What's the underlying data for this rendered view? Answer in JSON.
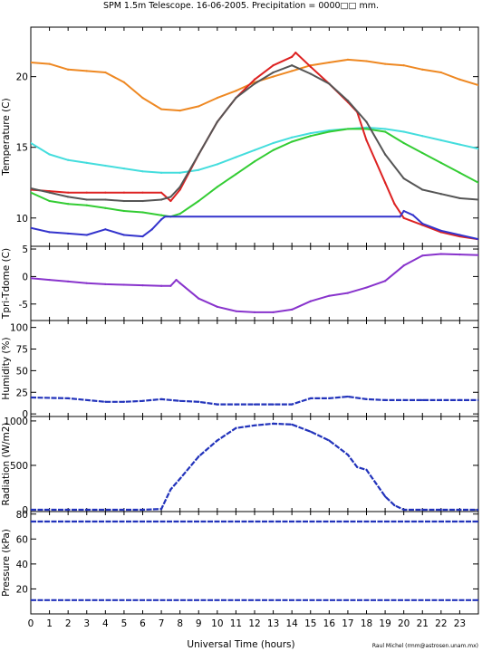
{
  "title": "SPM 1.5m Telescope. 16-06-2005. Precipitation = 0000□□ mm.",
  "credit": "Raul Michel (rmm@astrosen.unam.mx)",
  "chart_data": [
    {
      "type": "line",
      "panel": "temperature",
      "ylabel": "Temperature (C)",
      "xlim": [
        0,
        24
      ],
      "ylim": [
        8,
        23.5
      ],
      "yticks": [
        "10",
        "15",
        "20"
      ],
      "grid": false,
      "series": [
        {
          "color": "#ee8822",
          "x": [
            0,
            1,
            2,
            3,
            4,
            5,
            6,
            7,
            8,
            9,
            10,
            11,
            12,
            13,
            14,
            15,
            16,
            17,
            18,
            19,
            20,
            21,
            22,
            23,
            24
          ],
          "y": [
            21,
            20.9,
            20.5,
            20.4,
            20.3,
            19.6,
            18.5,
            17.7,
            17.6,
            17.9,
            18.5,
            19,
            19.6,
            20,
            20.4,
            20.8,
            21,
            21.2,
            21.1,
            20.9,
            20.8,
            20.5,
            20.3,
            19.8,
            19.4
          ]
        },
        {
          "color": "#44dddd",
          "x": [
            0,
            1,
            2,
            3,
            4,
            5,
            6,
            7,
            8,
            9,
            10,
            11,
            12,
            13,
            14,
            15,
            16,
            17,
            18,
            19,
            20,
            21,
            22,
            23,
            24
          ],
          "y": [
            15.3,
            14.5,
            14.1,
            13.9,
            13.7,
            13.5,
            13.3,
            13.2,
            13.2,
            13.4,
            13.8,
            14.3,
            14.8,
            15.3,
            15.7,
            16,
            16.2,
            16.3,
            16.4,
            16.3,
            16.1,
            15.8,
            15.5,
            15.2,
            14.9
          ]
        },
        {
          "color": "#33cc33",
          "x": [
            0,
            1,
            2,
            3,
            4,
            5,
            6,
            7,
            7.5,
            8,
            9,
            10,
            11,
            12,
            13,
            14,
            15,
            16,
            17,
            18,
            19,
            20,
            21,
            22,
            23,
            24
          ],
          "y": [
            11.8,
            11.2,
            11,
            10.9,
            10.7,
            10.5,
            10.4,
            10.2,
            10.1,
            10.3,
            11.2,
            12.2,
            13.1,
            14,
            14.8,
            15.4,
            15.8,
            16.1,
            16.3,
            16.3,
            16.1,
            15.3,
            14.6,
            13.9,
            13.2,
            12.5
          ]
        },
        {
          "color": "#dd2222",
          "x": [
            0,
            1,
            2,
            3,
            4,
            5,
            6,
            7,
            7.5,
            8,
            9,
            10,
            11,
            12,
            13,
            14,
            14.2,
            15,
            16,
            17,
            17.5,
            18,
            19,
            19.5,
            20,
            21,
            22,
            23,
            24
          ],
          "y": [
            12,
            11.9,
            11.8,
            11.8,
            11.8,
            11.8,
            11.8,
            11.8,
            11.2,
            12,
            14.5,
            16.8,
            18.5,
            19.8,
            20.8,
            21.4,
            21.7,
            20.7,
            19.5,
            18.2,
            17.5,
            15.5,
            12.5,
            11,
            10,
            9.5,
            9,
            8.7,
            8.5
          ]
        },
        {
          "color": "#555555",
          "x": [
            0,
            1,
            2,
            3,
            4,
            5,
            6,
            7,
            7.5,
            8,
            9,
            10,
            11,
            12,
            13,
            14,
            15,
            16,
            17,
            18,
            19,
            20,
            21,
            22,
            23,
            24
          ],
          "y": [
            12.1,
            11.8,
            11.5,
            11.3,
            11.3,
            11.2,
            11.2,
            11.3,
            11.5,
            12.2,
            14.5,
            16.8,
            18.5,
            19.5,
            20.3,
            20.8,
            20.2,
            19.5,
            18.3,
            16.8,
            14.5,
            12.8,
            12,
            11.7,
            11.4,
            11.3
          ]
        },
        {
          "color": "#3333cc",
          "x": [
            0,
            1,
            2,
            3,
            4,
            5,
            6,
            6.5,
            7,
            7.2,
            19.8,
            20,
            20.5,
            21,
            22,
            23,
            24
          ],
          "y": [
            9.3,
            9,
            8.9,
            8.8,
            9.2,
            8.8,
            8.7,
            9.2,
            9.9,
            10.1,
            10.1,
            10.5,
            10.2,
            9.6,
            9.1,
            8.8,
            8.5
          ]
        }
      ]
    },
    {
      "type": "line",
      "panel": "temperature-difference",
      "ylabel": "Tpri-Tdome (C)",
      "xlim": [
        0,
        24
      ],
      "ylim": [
        -8,
        5.5
      ],
      "yticks": [
        "-5",
        "0",
        "5"
      ],
      "series": [
        {
          "color": "#8833cc",
          "x": [
            0,
            1,
            2,
            3,
            4,
            5,
            6,
            7,
            7.5,
            7.8,
            8,
            9,
            10,
            11,
            12,
            13,
            14,
            15,
            16,
            17,
            18,
            19,
            20,
            21,
            22,
            23,
            24
          ],
          "y": [
            -0.3,
            -0.6,
            -0.9,
            -1.2,
            -1.4,
            -1.5,
            -1.6,
            -1.7,
            -1.7,
            -0.6,
            -1.2,
            -4,
            -5.5,
            -6.3,
            -6.5,
            -6.5,
            -6,
            -4.5,
            -3.5,
            -3,
            -2,
            -0.8,
            2,
            3.8,
            4.1,
            4,
            3.9
          ]
        }
      ]
    },
    {
      "type": "scatter",
      "panel": "humidity",
      "ylabel": "Humidity (%)",
      "xlim": [
        0,
        24
      ],
      "ylim": [
        -3,
        108
      ],
      "yticks": [
        "0",
        "25",
        "50",
        "75",
        "100"
      ],
      "series": [
        {
          "color": "#2233bb",
          "x": [
            0,
            2,
            4,
            5,
            6,
            7,
            8,
            9,
            10,
            11,
            12,
            13,
            14,
            15,
            16,
            17,
            18,
            19,
            20,
            21,
            22,
            23,
            24
          ],
          "y": [
            19,
            18,
            14,
            14,
            15,
            17,
            15,
            14,
            11,
            11,
            11,
            11,
            11,
            18,
            18,
            20,
            17,
            16,
            16,
            16,
            16,
            16,
            16
          ]
        }
      ]
    },
    {
      "type": "scatter",
      "panel": "radiation",
      "ylabel": "Radiation (W/m2)",
      "xlim": [
        0,
        24
      ],
      "ylim": [
        -20,
        1050
      ],
      "yticks": [
        "0",
        "500",
        "1000"
      ],
      "series": [
        {
          "color": "#2233bb",
          "x": [
            0,
            6,
            7,
            7.5,
            8,
            9,
            10,
            11,
            12,
            13,
            14,
            15,
            16,
            17,
            17.5,
            18,
            18.5,
            19,
            19.5,
            20,
            21,
            22,
            23,
            24
          ],
          "y": [
            0,
            0,
            10,
            230,
            350,
            600,
            780,
            920,
            950,
            970,
            960,
            880,
            780,
            620,
            480,
            450,
            300,
            150,
            50,
            0,
            0,
            0,
            0,
            0
          ]
        }
      ]
    },
    {
      "type": "scatter",
      "panel": "pressure",
      "ylabel": "Pressure (kPa)",
      "xlim": [
        0,
        24
      ],
      "ylim": [
        0,
        82
      ],
      "yticks": [
        "20",
        "40",
        "60",
        "80"
      ],
      "series": [
        {
          "color": "#2233bb",
          "x": [
            0,
            24
          ],
          "y": [
            74,
            74
          ]
        },
        {
          "color": "#2233bb",
          "x": [
            0,
            24
          ],
          "y": [
            11,
            11
          ]
        }
      ]
    }
  ],
  "xaxis": {
    "label": "Universal Time (hours)",
    "ticks": [
      "0",
      "1",
      "2",
      "3",
      "4",
      "5",
      "6",
      "7",
      "8",
      "9",
      "10",
      "11",
      "12",
      "13",
      "14",
      "15",
      "16",
      "17",
      "18",
      "19",
      "20",
      "21",
      "22",
      "23"
    ]
  }
}
